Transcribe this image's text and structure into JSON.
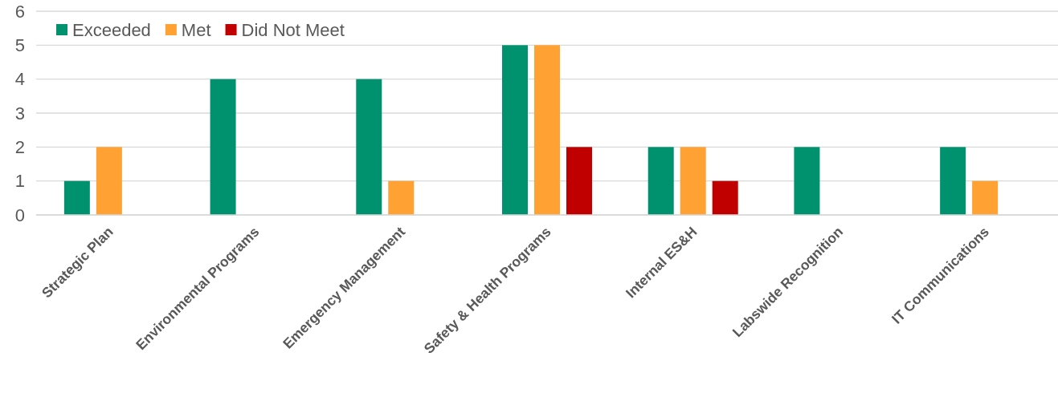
{
  "chart_data": {
    "type": "bar",
    "categories": [
      "Strategic Plan",
      "Environmental Programs",
      "Emergency Management",
      "Safety & Health Programs",
      "Internal ES&H",
      "Labswide Recognition",
      "IT Communications"
    ],
    "series": [
      {
        "name": "Exceeded",
        "color": "#00916e",
        "values": [
          1,
          4,
          4,
          5,
          2,
          2,
          2
        ]
      },
      {
        "name": "Met",
        "color": "#ffa133",
        "values": [
          2,
          0,
          1,
          5,
          2,
          0,
          1
        ]
      },
      {
        "name": "Did Not Meet",
        "color": "#c00000",
        "values": [
          0,
          0,
          0,
          2,
          1,
          0,
          0
        ]
      }
    ],
    "ylim": [
      0,
      6
    ],
    "yticks": [
      0,
      1,
      2,
      3,
      4,
      5,
      6
    ],
    "grid": "y",
    "legend": "top left"
  }
}
